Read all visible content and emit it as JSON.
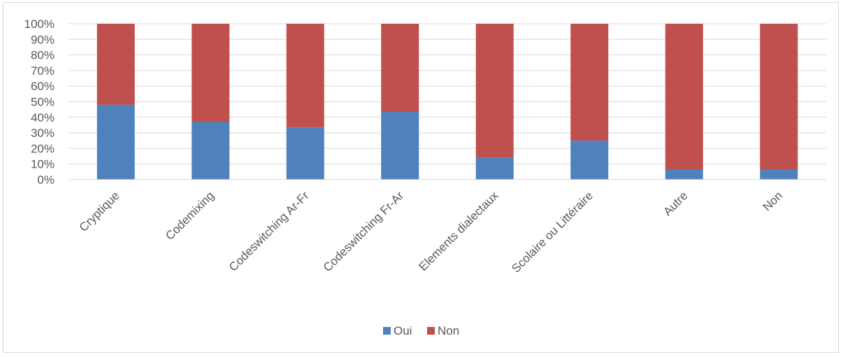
{
  "chart_data": {
    "type": "bar",
    "stacked": true,
    "percent_stacked": true,
    "categories": [
      "Cryptique",
      "Codemixing",
      "Codeswitching Ar-Fr",
      "Codeswitching Fr-Ar",
      "Elements dialectaux",
      "Scolaire ou Littéraire",
      "Autre",
      "Non"
    ],
    "series": [
      {
        "name": "Oui",
        "color": "#4f81bd",
        "values": [
          48,
          37,
          33.5,
          43.5,
          14,
          25,
          6.5,
          6.5
        ]
      },
      {
        "name": "Non",
        "color": "#c0504d",
        "values": [
          52,
          63,
          66.5,
          56.5,
          86,
          75,
          93.5,
          93.5
        ]
      }
    ],
    "ylim": [
      0,
      100
    ],
    "yticks": [
      "0%",
      "10%",
      "20%",
      "30%",
      "40%",
      "50%",
      "60%",
      "70%",
      "80%",
      "90%",
      "100%"
    ],
    "grid": true,
    "legend_position": "bottom"
  }
}
